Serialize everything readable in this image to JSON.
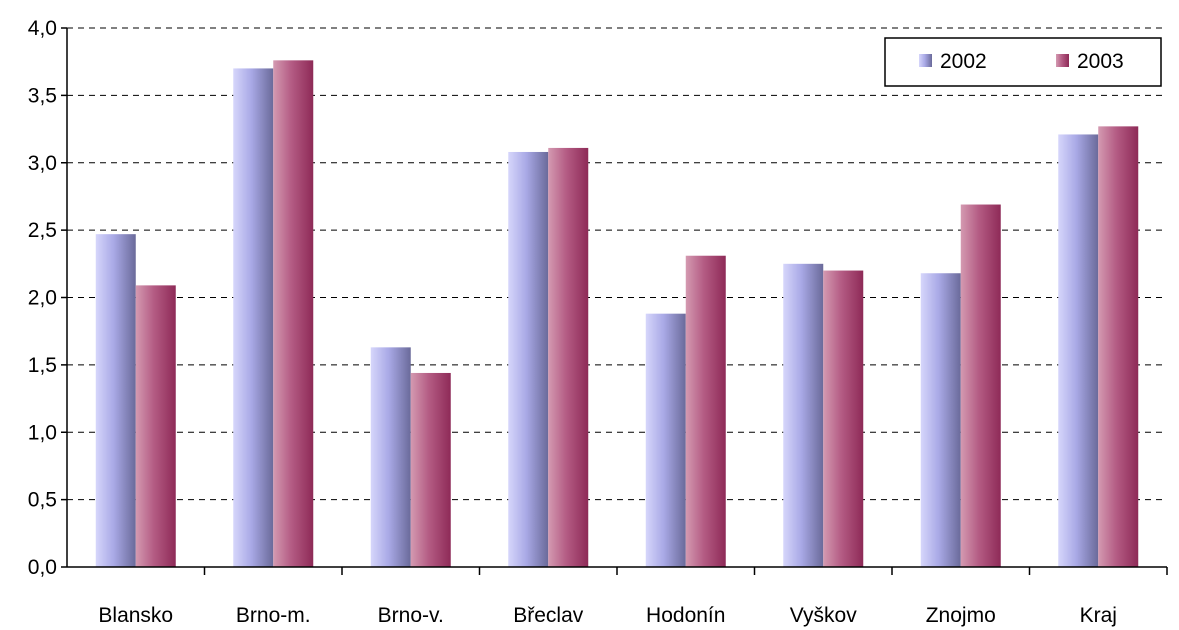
{
  "chart_data": {
    "type": "bar",
    "title": "",
    "xlabel": "",
    "ylabel": "",
    "categories": [
      "Blansko",
      "Brno-m.",
      "Brno-v.",
      "Břeclav",
      "Hodonín",
      "Vyškov",
      "Znojmo",
      "Kraj"
    ],
    "series": [
      {
        "name": "2002",
        "values": [
          2.47,
          3.7,
          1.63,
          3.08,
          1.88,
          2.25,
          2.18,
          3.21
        ]
      },
      {
        "name": "2003",
        "values": [
          2.09,
          3.76,
          1.44,
          3.11,
          2.31,
          2.2,
          2.69,
          3.27
        ]
      }
    ],
    "ylim": [
      0,
      4.0
    ],
    "yticks": [
      "0,0",
      "0,5",
      "1,0",
      "1,5",
      "2,0",
      "2,5",
      "3,0",
      "3,5",
      "4,0"
    ],
    "grid": "horizontal dashed",
    "legend_position": "top-right",
    "colors": {
      "2002": "#9999dd",
      "2003": "#993366"
    }
  }
}
